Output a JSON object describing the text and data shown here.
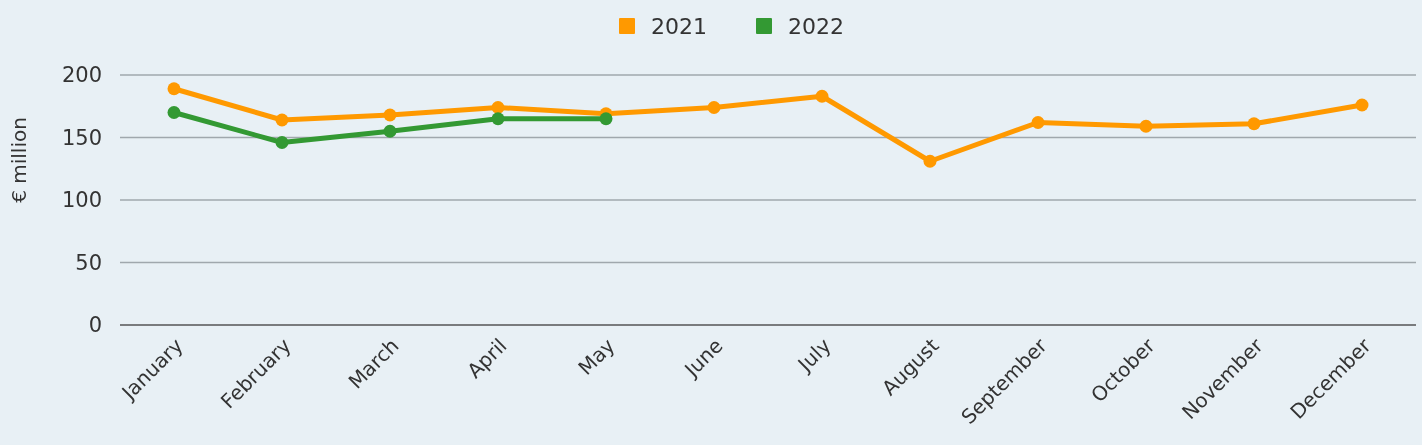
{
  "chart_data": {
    "type": "line",
    "ylabel": "€ million",
    "categories": [
      "January",
      "February",
      "March",
      "April",
      "May",
      "June",
      "July",
      "August",
      "September",
      "October",
      "November",
      "December"
    ],
    "series": [
      {
        "name": "2021",
        "color": "#ff9900",
        "values": [
          189,
          164,
          168,
          174,
          169,
          174,
          183,
          131,
          162,
          159,
          161,
          176
        ]
      },
      {
        "name": "2022",
        "color": "#339933",
        "values": [
          170,
          146,
          155,
          165,
          165,
          null,
          null,
          null,
          null,
          null,
          null,
          null
        ]
      }
    ],
    "ylim": [
      0,
      200
    ],
    "yticks": [
      0,
      50,
      100,
      150,
      200
    ],
    "grid": "y",
    "legend": "top",
    "marker": "circle",
    "line_style": "solid"
  }
}
